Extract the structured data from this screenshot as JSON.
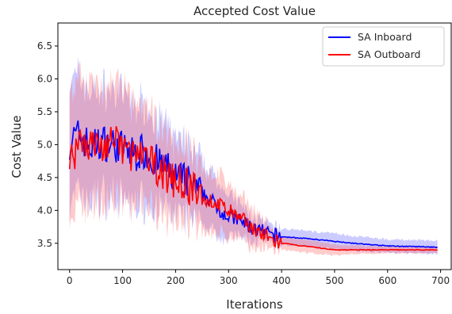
{
  "chart_data": {
    "type": "line",
    "title": "Accepted Cost Value",
    "xlabel": "Iterations",
    "ylabel": "Cost Value",
    "xlim": [
      -22,
      720
    ],
    "ylim": [
      3.1,
      6.85
    ],
    "xticks": [
      0,
      100,
      200,
      300,
      400,
      500,
      600,
      700
    ],
    "yticks": [
      3.5,
      4.0,
      4.5,
      5.0,
      5.5,
      6.0,
      6.5
    ],
    "grid": false,
    "legend_position": "top-right",
    "series": [
      {
        "name": "SA Inboard",
        "color": "#0000ff",
        "band_color": "#6b6bff",
        "x": [
          0,
          20,
          40,
          60,
          80,
          100,
          120,
          140,
          160,
          180,
          200,
          220,
          240,
          260,
          280,
          300,
          320,
          340,
          360,
          380,
          400,
          450,
          500,
          550,
          600,
          650,
          695
        ],
        "values": [
          5.05,
          5.15,
          4.95,
          5.05,
          5.0,
          4.95,
          4.85,
          4.9,
          4.75,
          4.65,
          4.5,
          4.45,
          4.3,
          4.2,
          4.05,
          3.9,
          3.85,
          3.75,
          3.68,
          3.62,
          3.6,
          3.57,
          3.53,
          3.49,
          3.46,
          3.45,
          3.44
        ],
        "band_halfwidth": [
          0.9,
          0.9,
          0.85,
          0.8,
          0.8,
          0.8,
          0.75,
          0.75,
          0.7,
          0.65,
          0.6,
          0.55,
          0.5,
          0.45,
          0.4,
          0.32,
          0.25,
          0.2,
          0.15,
          0.13,
          0.12,
          0.12,
          0.12,
          0.11,
          0.1,
          0.1,
          0.1
        ]
      },
      {
        "name": "SA Outboard",
        "color": "#ff0000",
        "band_color": "#ff6b6b",
        "x": [
          0,
          20,
          40,
          60,
          80,
          100,
          120,
          140,
          160,
          180,
          200,
          220,
          240,
          260,
          280,
          300,
          320,
          340,
          360,
          380,
          400,
          450,
          500,
          550,
          600,
          650,
          695
        ],
        "values": [
          4.7,
          5.1,
          5.0,
          4.95,
          5.05,
          4.95,
          4.85,
          4.75,
          4.7,
          4.55,
          4.45,
          4.4,
          4.25,
          4.15,
          4.1,
          4.0,
          3.88,
          3.78,
          3.65,
          3.55,
          3.5,
          3.45,
          3.4,
          3.4,
          3.4,
          3.4,
          3.4
        ],
        "band_halfwidth": [
          0.95,
          0.95,
          0.95,
          0.9,
          0.9,
          0.85,
          0.8,
          0.75,
          0.7,
          0.65,
          0.6,
          0.55,
          0.5,
          0.45,
          0.45,
          0.4,
          0.35,
          0.3,
          0.25,
          0.15,
          0.1,
          0.1,
          0.08,
          0.06,
          0.05,
          0.05,
          0.05
        ]
      }
    ]
  }
}
